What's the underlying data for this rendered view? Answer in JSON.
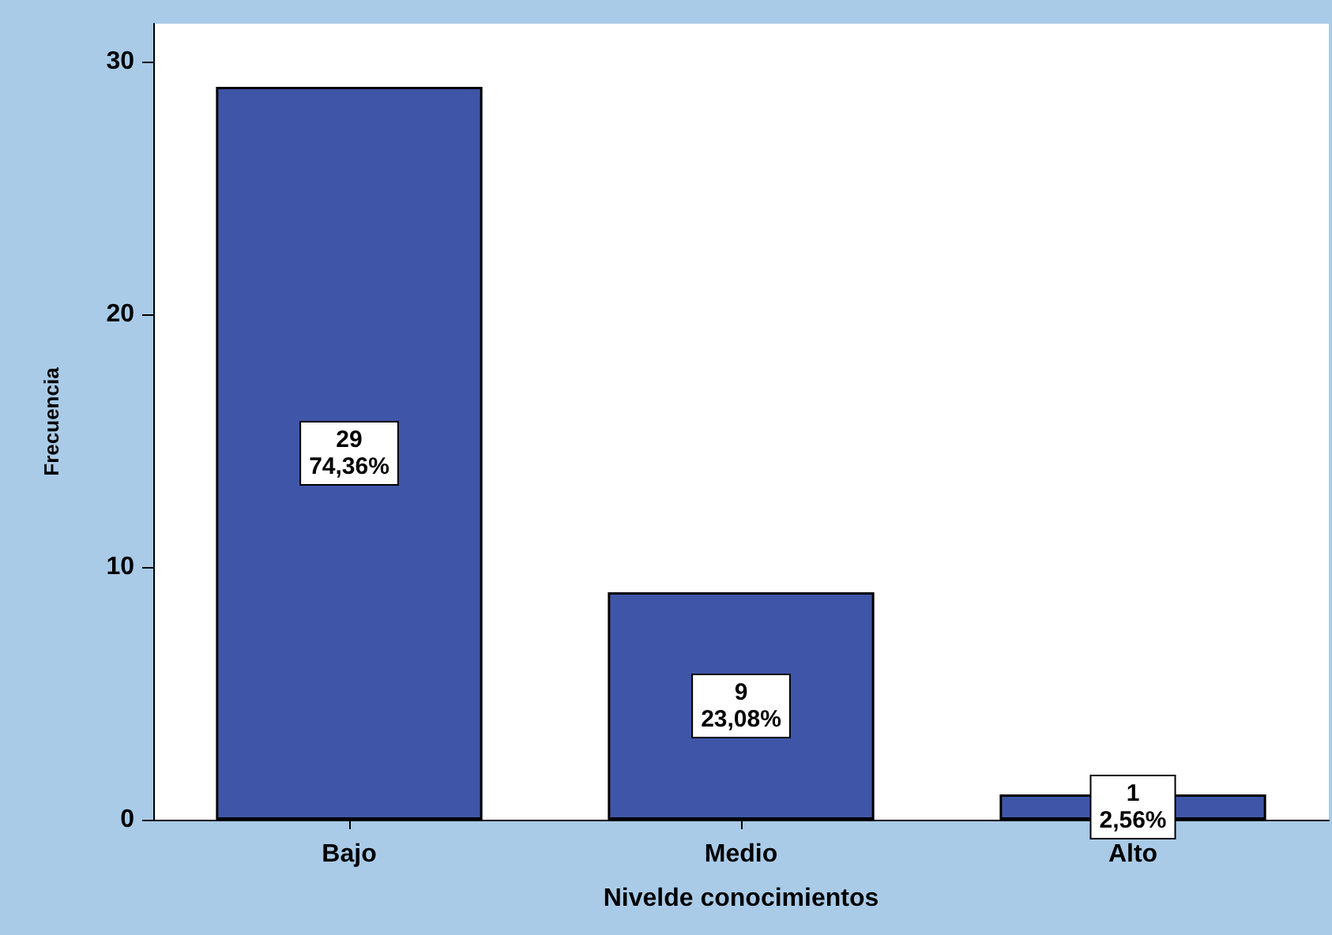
{
  "chart_data": {
    "type": "bar",
    "xlabel": "Nivelde conocimientos",
    "ylabel": "Frecuencia",
    "categories": [
      "Bajo",
      "Medio",
      "Alto"
    ],
    "values": [
      29,
      9,
      1
    ],
    "value_labels": [
      "29\n74,36%",
      "9\n23,08%",
      "1\n2,56%"
    ],
    "color": "#3f56a8",
    "ylim": [
      0,
      31.5
    ],
    "yticks": [
      0,
      10,
      20,
      30
    ],
    "grid": false
  }
}
